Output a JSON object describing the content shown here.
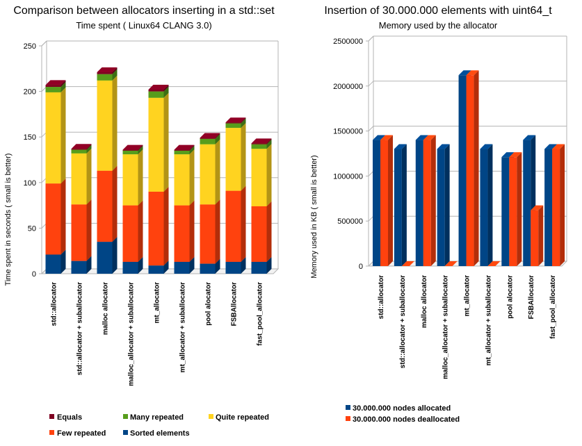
{
  "chart_data": [
    {
      "type": "bar",
      "stacked": true,
      "title": "Comparison between allocators inserting in a std::set",
      "subtitle": "Time spent ( Linux64 CLANG 3.0)",
      "xlabel": "",
      "ylabel": "Time spent in seconds ( small is better)",
      "ylim": [
        0,
        250
      ],
      "yticks": [
        0,
        50,
        100,
        150,
        200,
        250
      ],
      "grid": true,
      "legend_position": "bottom",
      "categories": [
        "std::allocator",
        "std::allocator + suballocator",
        "malloc allocator",
        "malloc_allocator + suballocator",
        "mt_allocator",
        "mt_allocator + suballocator",
        "pool alocator",
        "FSBAllocator",
        "fast_pool_allocator"
      ],
      "series": [
        {
          "name": "Sorted elements",
          "color": "#004586",
          "values": [
            21,
            14,
            35,
            13,
            9,
            13,
            11,
            13,
            13
          ]
        },
        {
          "name": "Few repeated",
          "color": "#ff420e",
          "values": [
            78,
            62,
            78,
            62,
            81,
            62,
            65,
            78,
            61
          ]
        },
        {
          "name": "Quite repeated",
          "color": "#ffd320",
          "values": [
            100,
            56,
            99,
            56,
            103,
            56,
            66,
            69,
            63
          ]
        },
        {
          "name": "Many repeated",
          "color": "#579d1c",
          "values": [
            6,
            4,
            7,
            4,
            7,
            4,
            6,
            5,
            5
          ]
        },
        {
          "name": "Equals",
          "color": "#7e0021",
          "values": [
            2,
            1,
            2,
            1,
            2,
            1,
            1,
            1,
            1
          ]
        }
      ]
    },
    {
      "type": "bar",
      "stacked": false,
      "title": "Insertion of 30.000.000 elements with uint64_t",
      "subtitle": "Memory used by the allocator",
      "xlabel": "",
      "ylabel": "Memory used in KB ( small is better)",
      "ylim": [
        0,
        2500000
      ],
      "yticks": [
        0,
        500000,
        1000000,
        1500000,
        2000000,
        2500000
      ],
      "grid": true,
      "legend_position": "bottom",
      "categories": [
        "std::allocator",
        "std::allocator + suballocator",
        "malloc allocator",
        "malloc_allocator + suballocator",
        "mt_allocator",
        "mt_allocator + suballocator",
        "pool alocator",
        "FSBAllocator",
        "fast_pool_allocator"
      ],
      "series": [
        {
          "name": "30.000.000 nodes allocated",
          "color": "#004586",
          "values": [
            1400000,
            1300000,
            1400000,
            1300000,
            2120000,
            1300000,
            1210000,
            1400000,
            1300000
          ]
        },
        {
          "name": "30.000.000 nodes deallocated",
          "color": "#ff420e",
          "values": [
            1400000,
            0,
            1400000,
            0,
            2120000,
            0,
            1210000,
            620000,
            1300000
          ]
        }
      ]
    }
  ],
  "legend1": {
    "row1": [
      "Equals",
      "Many repeated",
      "Quite repeated"
    ],
    "row2": [
      "Few repeated",
      "Sorted elements"
    ]
  },
  "legend2": [
    "30.000.000 nodes allocated",
    "30.000.000 nodes deallocated"
  ]
}
